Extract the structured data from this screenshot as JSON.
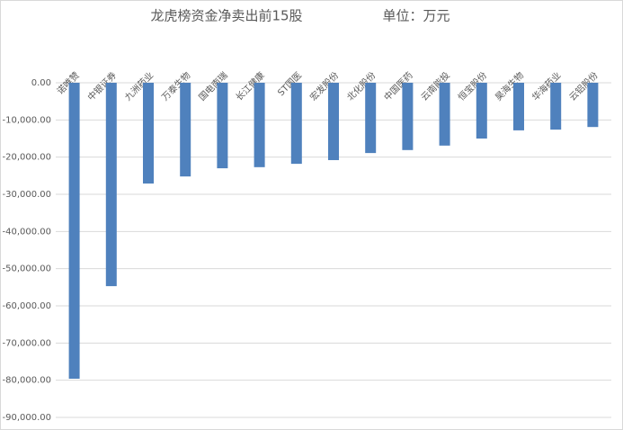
{
  "chart_data": {
    "type": "bar",
    "title": "龙虎榜资金净卖出前15股",
    "subtitle": "单位：万元",
    "categories": [
      "诺唯赞",
      "中银证券",
      "九洲药业",
      "万泰生物",
      "国电南瑞",
      "长江健康",
      "ST国医",
      "宏发股份",
      "北化股份",
      "中国医药",
      "云南能投",
      "恒宝股份",
      "昊海生物",
      "华海药业",
      "云铝股份"
    ],
    "values": [
      -79600,
      -54700,
      -27100,
      -25200,
      -23000,
      -22700,
      -21800,
      -20800,
      -18900,
      -18100,
      -16900,
      -15000,
      -12800,
      -12600,
      -11900
    ],
    "color": "#4f81bd",
    "ylim": [
      -90000,
      0
    ],
    "yticks": [
      {
        "value": 0,
        "label": "0.00"
      },
      {
        "value": -10000,
        "label": "-10,000.00"
      },
      {
        "value": -20000,
        "label": "-20,000.00"
      },
      {
        "value": -30000,
        "label": "-30,000.00"
      },
      {
        "value": -40000,
        "label": "-40,000.00"
      },
      {
        "value": -50000,
        "label": "-50,000.00"
      },
      {
        "value": -60000,
        "label": "-60,000.00"
      },
      {
        "value": -70000,
        "label": "-70,000.00"
      },
      {
        "value": -80000,
        "label": "-80,000.00"
      },
      {
        "value": -90000,
        "label": "-90,000.00"
      }
    ],
    "grid": true
  }
}
